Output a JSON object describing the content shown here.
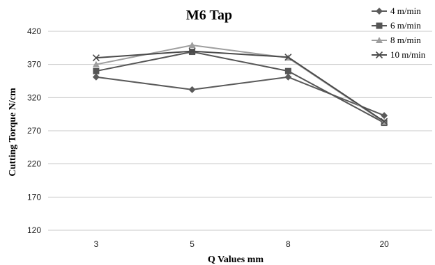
{
  "chart_data": {
    "type": "line",
    "title": "M6 Tap",
    "xlabel": "Q Values mm",
    "ylabel": "Cutting Torque N/cm",
    "categories": [
      "3",
      "5",
      "8",
      "20"
    ],
    "ylim": [
      120,
      420
    ],
    "yticks": [
      120,
      170,
      220,
      270,
      320,
      370,
      420
    ],
    "grid": true,
    "legend_position": "top-right",
    "series": [
      {
        "name": "4 m/min",
        "values": [
          351,
          332,
          351,
          293
        ],
        "color": "#5a5a5a",
        "marker": "diamond"
      },
      {
        "name": "6 m/min",
        "values": [
          360,
          389,
          360,
          282
        ],
        "color": "#555555",
        "marker": "square"
      },
      {
        "name": "8 m/min",
        "values": [
          370,
          399,
          380,
          283
        ],
        "color": "#9e9e9e",
        "marker": "triangle"
      },
      {
        "name": "10 m/min",
        "values": [
          380,
          390,
          381,
          284
        ],
        "color": "#4a4a4a",
        "marker": "x"
      }
    ]
  }
}
